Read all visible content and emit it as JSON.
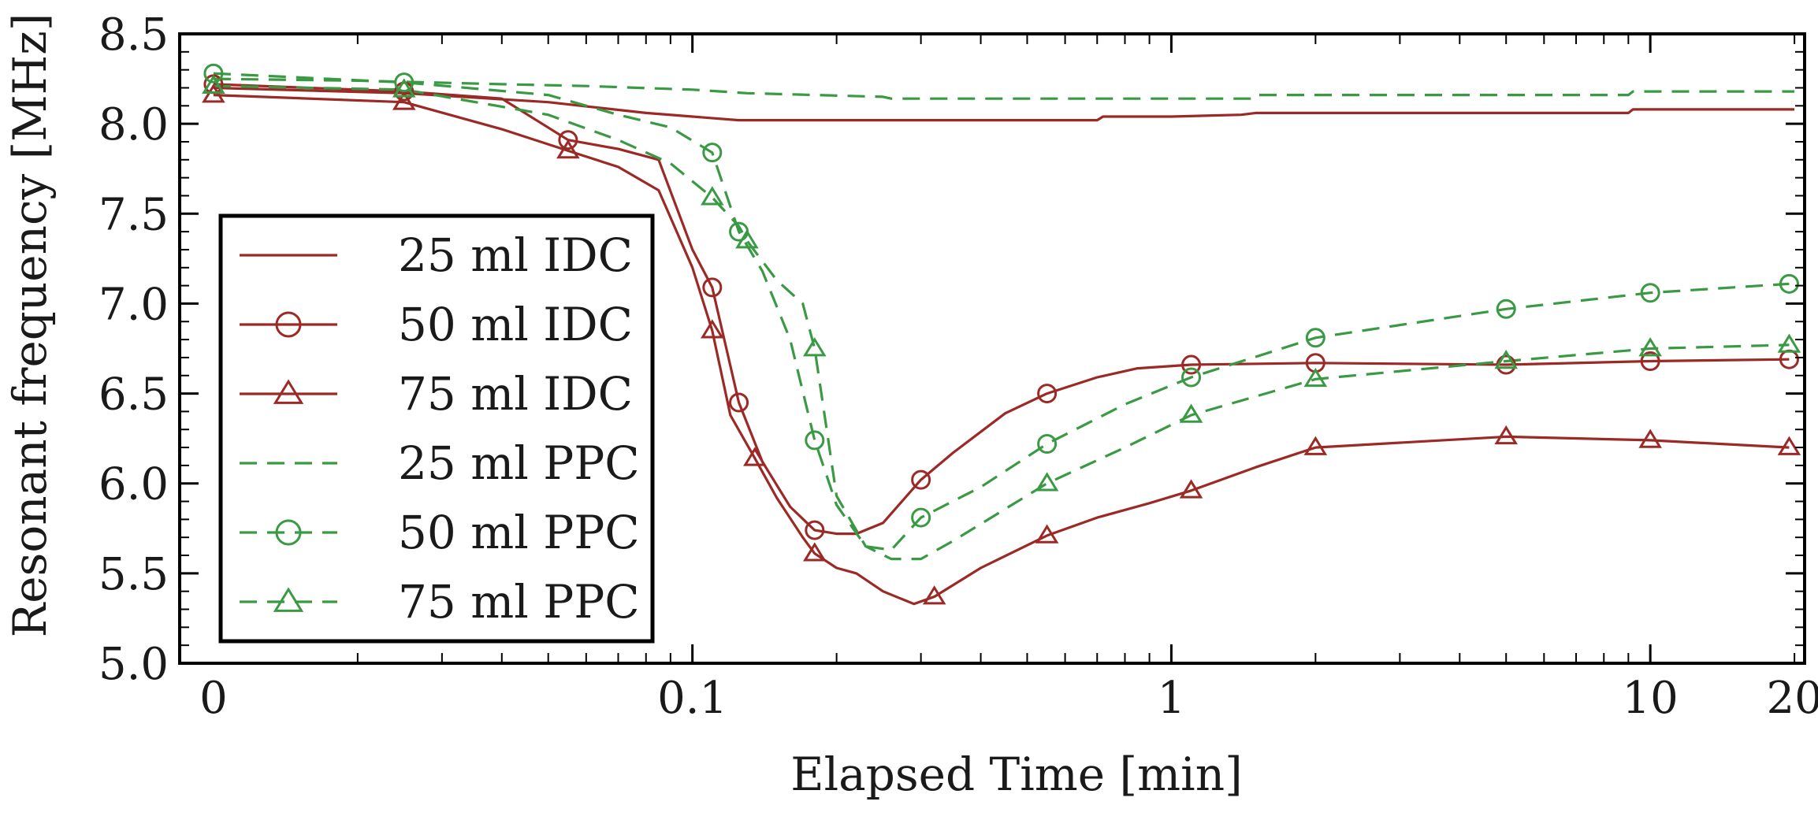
{
  "chart_data": {
    "type": "line",
    "title": "",
    "xlabel": "Elapsed Time [min]",
    "ylabel": "Resonant frequency [MHz]",
    "xscale": "log",
    "xlim": [
      0.0085,
      21
    ],
    "ylim": [
      5.0,
      8.5
    ],
    "xticks": [
      {
        "value": 0.01,
        "label": "0"
      },
      {
        "value": 0.1,
        "label": "0.1"
      },
      {
        "value": 1,
        "label": "1"
      },
      {
        "value": 10,
        "label": "10"
      },
      {
        "value": 20,
        "label": "20"
      }
    ],
    "yticks": [
      {
        "value": 5.0,
        "label": "5.0"
      },
      {
        "value": 5.5,
        "label": "5.5"
      },
      {
        "value": 6.0,
        "label": "6.0"
      },
      {
        "value": 6.5,
        "label": "6.5"
      },
      {
        "value": 7.0,
        "label": "7.0"
      },
      {
        "value": 7.5,
        "label": "7.5"
      },
      {
        "value": 8.0,
        "label": "8.0"
      },
      {
        "value": 8.5,
        "label": "8.5"
      }
    ],
    "legend_position": "left",
    "colors": {
      "IDC": "#9b2a27",
      "PPC": "#3a9a44",
      "axes": "#000000"
    },
    "series": [
      {
        "name": "25 ml IDC",
        "color": "#9b2a27",
        "dash": false,
        "marker": "none",
        "x": [
          0.01,
          0.025,
          0.05,
          0.08,
          0.1,
          0.125,
          0.2,
          0.3,
          0.5,
          0.7,
          0.72,
          1.0,
          1.4,
          1.5,
          3.0,
          9.0,
          9.2,
          20
        ],
        "y": [
          8.2,
          8.17,
          8.12,
          8.06,
          8.04,
          8.02,
          8.02,
          8.02,
          8.02,
          8.02,
          8.04,
          8.04,
          8.05,
          8.06,
          8.06,
          8.06,
          8.08,
          8.08
        ]
      },
      {
        "name": "50 ml IDC",
        "color": "#9b2a27",
        "dash": false,
        "marker": "circle",
        "x": [
          0.01,
          0.025,
          0.04,
          0.055,
          0.07,
          0.085,
          0.1,
          0.11,
          0.125,
          0.14,
          0.16,
          0.18,
          0.2,
          0.22,
          0.25,
          0.3,
          0.35,
          0.45,
          0.55,
          0.7,
          0.85,
          1.1,
          2.0,
          5.0,
          10,
          19.5
        ],
        "y": [
          8.22,
          8.18,
          8.14,
          7.91,
          7.86,
          7.8,
          7.3,
          7.09,
          6.45,
          6.12,
          5.87,
          5.74,
          5.72,
          5.72,
          5.78,
          6.02,
          6.17,
          6.39,
          6.5,
          6.59,
          6.64,
          6.66,
          6.67,
          6.66,
          6.68,
          6.69
        ]
      },
      {
        "name": "75 ml IDC",
        "color": "#9b2a27",
        "dash": false,
        "marker": "triangle",
        "x": [
          0.01,
          0.025,
          0.04,
          0.055,
          0.07,
          0.085,
          0.1,
          0.11,
          0.12,
          0.135,
          0.15,
          0.17,
          0.18,
          0.2,
          0.22,
          0.25,
          0.29,
          0.32,
          0.4,
          0.55,
          0.7,
          0.9,
          1.1,
          1.5,
          2.0,
          5.0,
          10,
          19.5
        ],
        "y": [
          8.16,
          8.12,
          7.97,
          7.85,
          7.76,
          7.63,
          7.2,
          6.85,
          6.38,
          6.14,
          5.92,
          5.7,
          5.61,
          5.53,
          5.5,
          5.4,
          5.33,
          5.37,
          5.53,
          5.71,
          5.81,
          5.89,
          5.96,
          6.09,
          6.2,
          6.26,
          6.24,
          6.2
        ]
      },
      {
        "name": "25 ml PPC",
        "color": "#3a9a44",
        "dash": true,
        "marker": "none",
        "x": [
          0.01,
          0.02,
          0.04,
          0.06,
          0.1,
          0.13,
          0.25,
          0.26,
          1.5,
          1.52,
          9.0,
          9.2,
          20
        ],
        "y": [
          8.25,
          8.24,
          8.22,
          8.21,
          8.19,
          8.17,
          8.15,
          8.14,
          8.14,
          8.16,
          8.16,
          8.18,
          8.18
        ]
      },
      {
        "name": "50 ml PPC",
        "color": "#3a9a44",
        "dash": true,
        "marker": "circle",
        "x": [
          0.01,
          0.025,
          0.05,
          0.07,
          0.09,
          0.11,
          0.125,
          0.14,
          0.16,
          0.18,
          0.2,
          0.23,
          0.26,
          0.3,
          0.4,
          0.55,
          0.8,
          1.1,
          2.0,
          5.0,
          10,
          19.5
        ],
        "y": [
          8.28,
          8.23,
          8.16,
          8.05,
          7.98,
          7.84,
          7.4,
          7.18,
          6.8,
          6.24,
          5.88,
          5.65,
          5.63,
          5.81,
          5.98,
          6.22,
          6.44,
          6.59,
          6.81,
          6.97,
          7.06,
          7.11
        ]
      },
      {
        "name": "75 ml PPC",
        "color": "#3a9a44",
        "dash": true,
        "marker": "triangle",
        "x": [
          0.01,
          0.025,
          0.05,
          0.07,
          0.09,
          0.11,
          0.125,
          0.13,
          0.15,
          0.17,
          0.18,
          0.2,
          0.23,
          0.26,
          0.3,
          0.35,
          0.55,
          0.8,
          1.1,
          2.0,
          5.0,
          10,
          19.5
        ],
        "y": [
          8.21,
          8.19,
          8.05,
          7.91,
          7.78,
          7.59,
          7.43,
          7.35,
          7.13,
          7.0,
          6.75,
          5.93,
          5.65,
          5.58,
          5.58,
          5.68,
          6.0,
          6.2,
          6.38,
          6.58,
          6.68,
          6.75,
          6.77
        ]
      }
    ]
  }
}
